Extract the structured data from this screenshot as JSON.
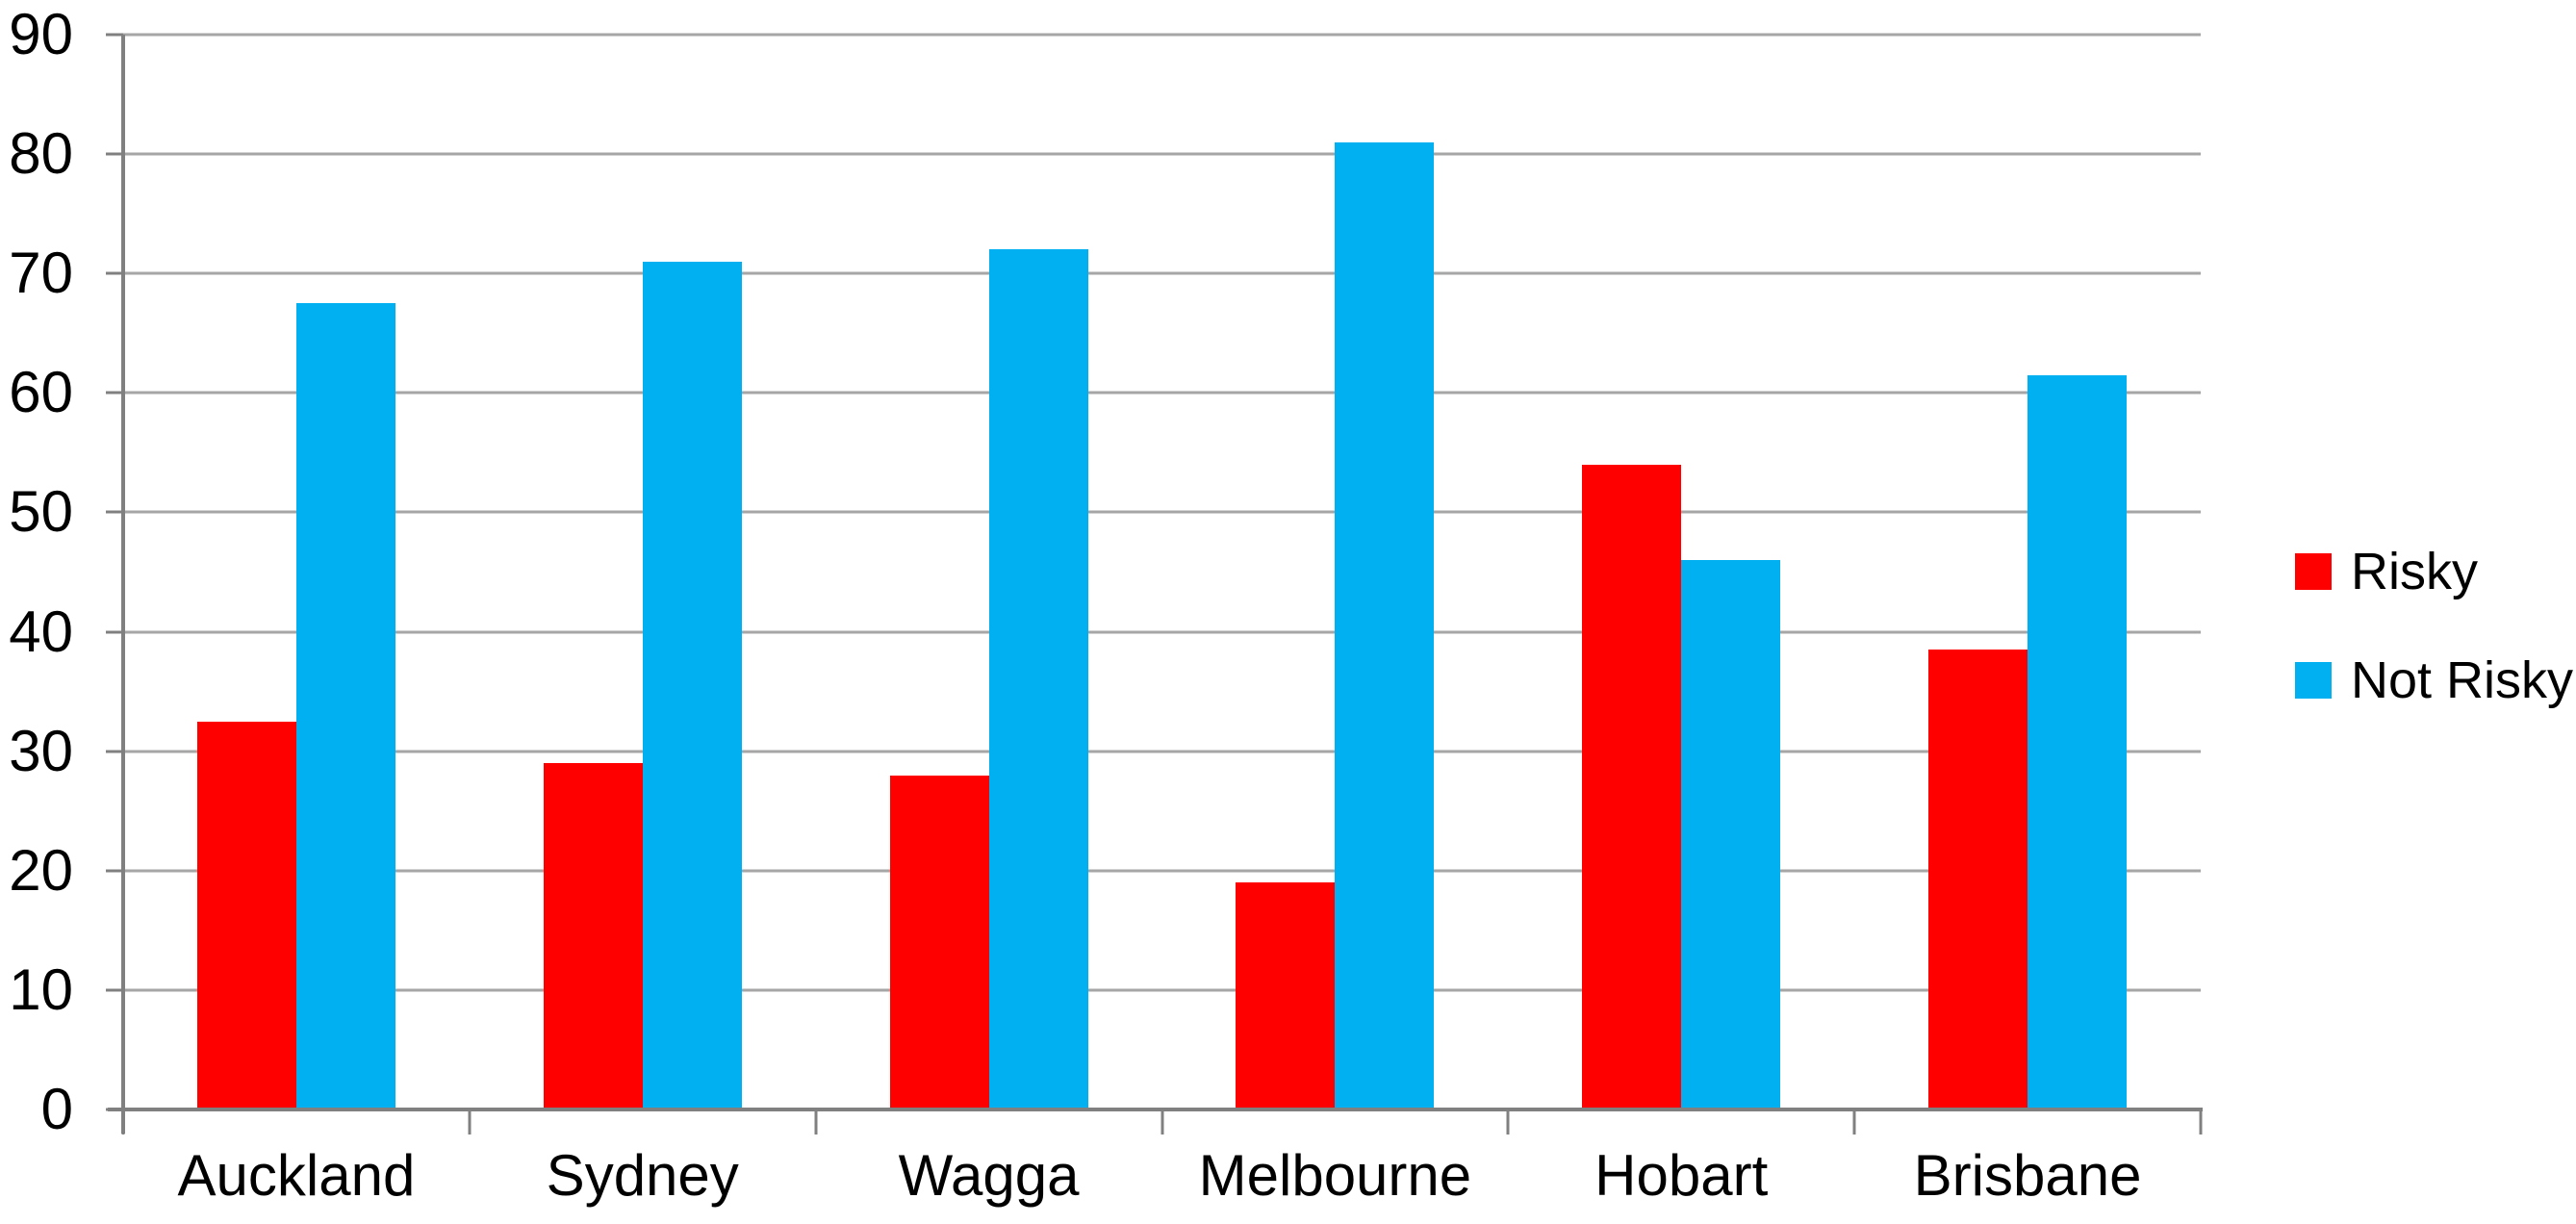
{
  "chart_data": {
    "type": "bar",
    "title": "",
    "xlabel": "",
    "ylabel": "",
    "categories": [
      "Auckland",
      "Sydney",
      "Wagga",
      "Melbourne",
      "Hobart",
      "Brisbane"
    ],
    "series": [
      {
        "name": "Risky",
        "color": "#ff0000",
        "values": [
          32.5,
          29,
          28,
          19,
          54,
          38.5
        ]
      },
      {
        "name": "Not Risky",
        "color": "#00b0f0",
        "values": [
          67.5,
          71,
          72,
          81,
          46,
          61.5
        ]
      }
    ],
    "ylim": [
      0,
      90
    ],
    "yticks": [
      0,
      10,
      20,
      30,
      40,
      50,
      60,
      70,
      80,
      90
    ],
    "grid": true,
    "legend_position": "right"
  },
  "colors": {
    "risky": "#ff0000",
    "not_risky": "#00b0f0",
    "gridline": "#a6a6a6",
    "axis": "#808080",
    "text": "#000000",
    "background": "#ffffff"
  }
}
